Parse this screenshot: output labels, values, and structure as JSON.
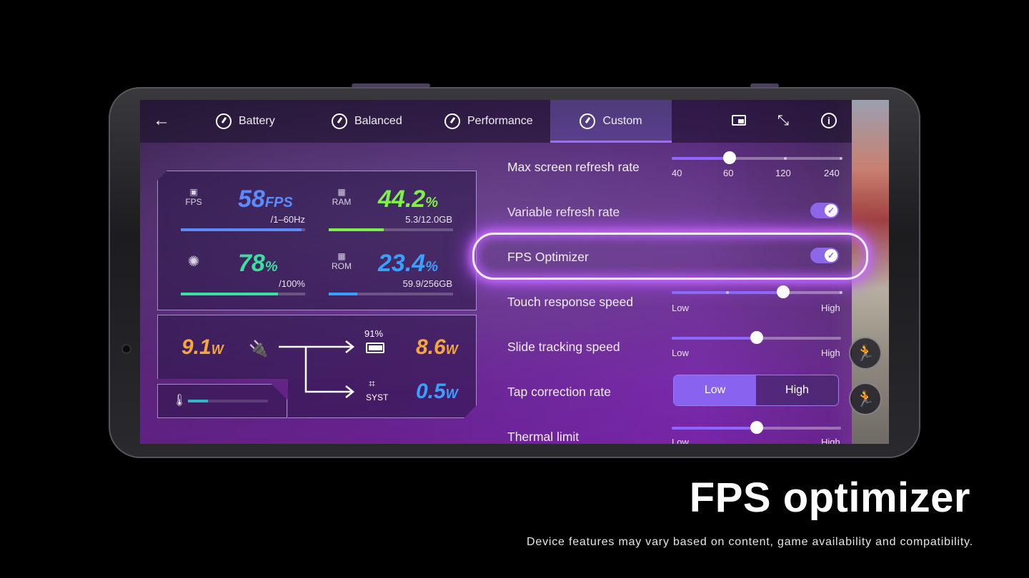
{
  "tabs": [
    {
      "label": "Battery",
      "icon": "battery-gauge-icon"
    },
    {
      "label": "Balanced",
      "icon": "balanced-gauge-icon"
    },
    {
      "label": "Performance",
      "icon": "performance-gauge-icon"
    },
    {
      "label": "Custom",
      "icon": "custom-gauge-icon",
      "active": true
    }
  ],
  "toolbar_icons": [
    "back-arrow-icon",
    "picture-in-picture-icon",
    "compress-icon",
    "info-icon"
  ],
  "stats": {
    "fps": {
      "label": "FPS",
      "value": "58",
      "unit": "FPS",
      "sub": "/1–60Hz",
      "color": "#5a8cff",
      "level": 0.97
    },
    "ram": {
      "label": "RAM",
      "value": "44.2",
      "unit": "%",
      "sub": "5.3/12.0GB",
      "color": "#7ff04a",
      "level": 0.44
    },
    "brightness": {
      "value": "78",
      "unit": "%",
      "sub": "/100%",
      "color": "#3be0a0",
      "level": 0.78
    },
    "rom": {
      "label": "ROM",
      "value": "23.4",
      "unit": "%",
      "sub": "59.9/256GB",
      "color": "#3aa0ff",
      "level": 0.23
    }
  },
  "power": {
    "input_value": "9.1",
    "input_unit": "W",
    "battery_percent": "91%",
    "battery_value": "8.6",
    "battery_unit": "W",
    "system_label": "SYST",
    "system_value": "0.5",
    "system_unit": "W",
    "temperature_level": 0.25
  },
  "settings": {
    "max_refresh": {
      "label": "Max screen refresh rate",
      "options": [
        "40",
        "60",
        "120",
        "240"
      ],
      "selected": "60"
    },
    "variable_refresh": {
      "label": "Variable refresh rate",
      "on": true
    },
    "fps_optimizer": {
      "label": "FPS Optimizer",
      "on": true
    },
    "touch_response": {
      "label": "Touch response speed",
      "low": "Low",
      "high": "High",
      "level": 0.66
    },
    "slide_tracking": {
      "label": "Slide tracking speed",
      "low": "Low",
      "high": "High",
      "level": 0.5
    },
    "tap_correction": {
      "label": "Tap correction rate",
      "options": [
        "Low",
        "High"
      ],
      "selected": "Low"
    },
    "thermal_limit": {
      "label": "Thermal limit",
      "low": "Low",
      "high": "High",
      "level": 0.5
    }
  },
  "caption": "FPS optimizer",
  "disclaimer": "Device features may vary based on content, game availability and compatibility."
}
